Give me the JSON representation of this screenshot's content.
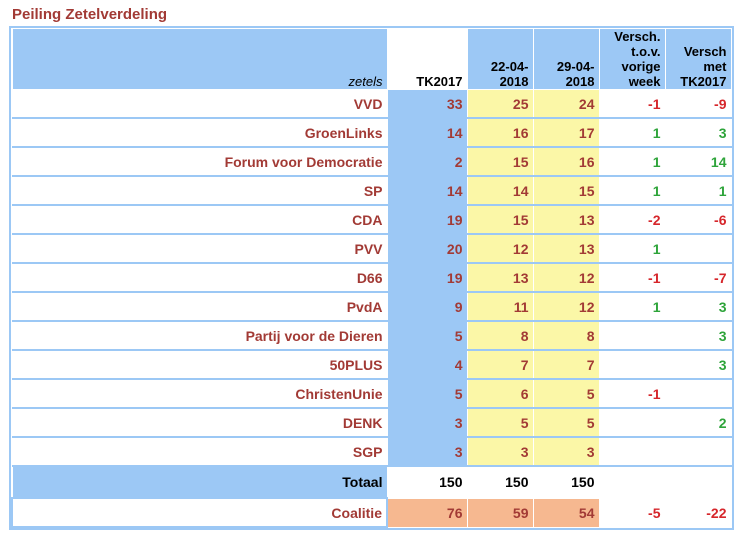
{
  "title": "Peiling Zetelverdeling",
  "header": {
    "label": "zetels",
    "col_tk": "TK2017",
    "col_a": "22-04-2018",
    "col_b": "29-04-2018",
    "col_diff_week": "Versch. t.o.v. vorige week",
    "col_diff_tk": "Versch met TK2017"
  },
  "rows": [
    {
      "party": "VVD",
      "tk": "33",
      "a": "25",
      "b": "24",
      "dw": "-1",
      "dt": "-9"
    },
    {
      "party": "GroenLinks",
      "tk": "14",
      "a": "16",
      "b": "17",
      "dw": "1",
      "dt": "3"
    },
    {
      "party": "Forum voor Democratie",
      "tk": "2",
      "a": "15",
      "b": "16",
      "dw": "1",
      "dt": "14"
    },
    {
      "party": "SP",
      "tk": "14",
      "a": "14",
      "b": "15",
      "dw": "1",
      "dt": "1"
    },
    {
      "party": "CDA",
      "tk": "19",
      "a": "15",
      "b": "13",
      "dw": "-2",
      "dt": "-6"
    },
    {
      "party": "PVV",
      "tk": "20",
      "a": "12",
      "b": "13",
      "dw": "1",
      "dt": ""
    },
    {
      "party": "D66",
      "tk": "19",
      "a": "13",
      "b": "12",
      "dw": "-1",
      "dt": "-7"
    },
    {
      "party": "PvdA",
      "tk": "9",
      "a": "11",
      "b": "12",
      "dw": "1",
      "dt": "3"
    },
    {
      "party": "Partij voor de Dieren",
      "tk": "5",
      "a": "8",
      "b": "8",
      "dw": "",
      "dt": "3"
    },
    {
      "party": "50PLUS",
      "tk": "4",
      "a": "7",
      "b": "7",
      "dw": "",
      "dt": "3"
    },
    {
      "party": "ChristenUnie",
      "tk": "5",
      "a": "6",
      "b": "5",
      "dw": "-1",
      "dt": ""
    },
    {
      "party": "DENK",
      "tk": "3",
      "a": "5",
      "b": "5",
      "dw": "",
      "dt": "2"
    },
    {
      "party": "SGP",
      "tk": "3",
      "a": "3",
      "b": "3",
      "dw": "",
      "dt": ""
    }
  ],
  "total": {
    "label": "Totaal",
    "tk": "150",
    "a": "150",
    "b": "150"
  },
  "coalition": {
    "label": "Coalitie",
    "tk": "76",
    "a": "59",
    "b": "54",
    "dw": "-5",
    "dt": "-22"
  },
  "colors": {
    "red_text": "#a23a35",
    "negative": "#d6262b",
    "positive": "#2ea43a",
    "blue": "#9cc8f5",
    "yellow": "#fbf7a7",
    "peach": "#f6b890"
  }
}
